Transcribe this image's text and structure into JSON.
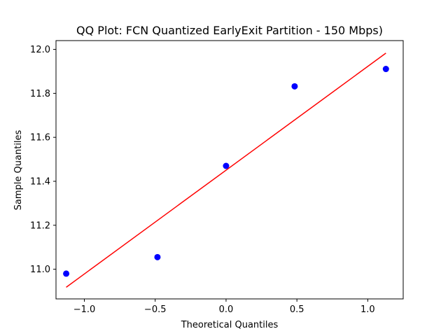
{
  "chart_data": {
    "type": "scatter",
    "title": "QQ Plot: FCN Quantized EarlyExit Partition - 150 Mbps)",
    "xlabel": "Theoretical Quantiles",
    "ylabel": "Sample Quantiles",
    "xlim": [
      -1.2,
      1.25
    ],
    "ylim": [
      10.865,
      12.04
    ],
    "xticks": [
      -1.0,
      -0.5,
      0.0,
      0.5,
      1.0
    ],
    "xtick_labels": [
      "−1.0",
      "−0.5",
      "0.0",
      "0.5",
      "1.0"
    ],
    "yticks": [
      11.0,
      11.2,
      11.4,
      11.6,
      11.8,
      12.0
    ],
    "ytick_labels": [
      "11.0",
      "11.2",
      "11.4",
      "11.6",
      "11.8",
      "12.0"
    ],
    "grid": false,
    "series": [
      {
        "type": "scatter",
        "color": "#0000ff",
        "x": [
          -1.128,
          -0.484,
          0.0,
          0.484,
          1.128
        ],
        "y": [
          10.98,
          11.055,
          11.47,
          11.832,
          11.911
        ]
      },
      {
        "type": "line",
        "color": "#ff0000",
        "x": [
          -1.128,
          1.128
        ],
        "y": [
          10.918,
          11.983
        ]
      }
    ]
  }
}
